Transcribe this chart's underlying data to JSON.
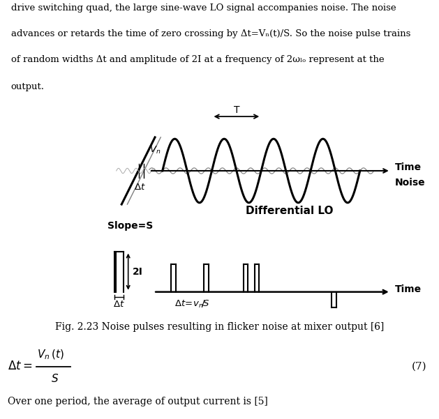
{
  "fig_caption": "Fig. 2.23 Noise pulses resulting in flicker noise at mixer output [6]",
  "eq_number": "(7)",
  "bottom_text": "Over one period, the average of output current is [5]",
  "top_text_lines": [
    "drive switching quad, the large sine-wave LO signal accompanies noise. The noise",
    "advances or retards the time of zero crossing by Δt=Vₙ(t)/S. So the noise pulse trains",
    "of random widths Δt and amplitude of 2I at a frequency of 2ωₗₒ represent at the",
    "output."
  ],
  "bg_color": "#ffffff",
  "upper_diagram": {
    "slope_label": "Slope=S",
    "time_label": "Time",
    "noise_label": "Noise",
    "diff_lo_label": "Differential LO",
    "T_label": "T"
  },
  "lower_diagram": {
    "time_label": "Time",
    "amplitude_label": "2I",
    "dt_label": "Δt",
    "dt_eq_label": "Δt=v_n/S"
  }
}
